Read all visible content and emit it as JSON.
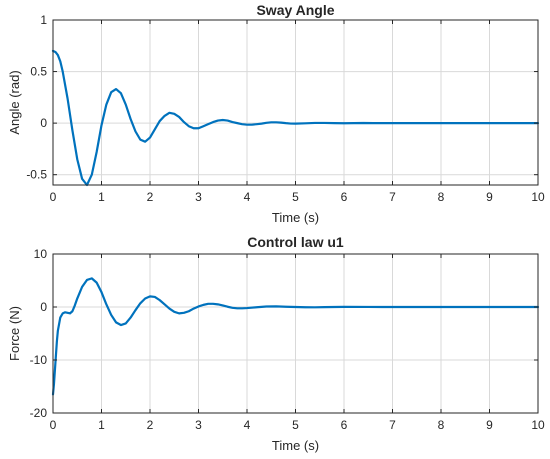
{
  "chart_data": [
    {
      "type": "line",
      "title": "Sway Angle",
      "xlabel": "Time (s)",
      "ylabel": "Angle (rad)",
      "xlim": [
        0,
        10
      ],
      "ylim": [
        -0.6,
        1
      ],
      "xticks": [
        0,
        1,
        2,
        3,
        4,
        5,
        6,
        7,
        8,
        9,
        10
      ],
      "yticks": [
        -0.5,
        0,
        0.5,
        1
      ],
      "ytick_labels": [
        "-0.5",
        "0",
        "0.5",
        "1"
      ],
      "grid": true,
      "color": "#0072BD",
      "series": [
        {
          "x": [
            0,
            0.05,
            0.1,
            0.15,
            0.2,
            0.3,
            0.4,
            0.5,
            0.6,
            0.7,
            0.8,
            0.9,
            1.0,
            1.1,
            1.2,
            1.3,
            1.4,
            1.5,
            1.6,
            1.7,
            1.8,
            1.9,
            2.0,
            2.1,
            2.2,
            2.3,
            2.4,
            2.5,
            2.6,
            2.7,
            2.8,
            2.9,
            3.0,
            3.1,
            3.2,
            3.3,
            3.4,
            3.5,
            3.6,
            3.7,
            3.8,
            3.9,
            4.0,
            4.1,
            4.2,
            4.3,
            4.4,
            4.5,
            4.6,
            4.7,
            4.8,
            4.9,
            5.0,
            5.2,
            5.4,
            5.6,
            5.8,
            6.0,
            6.2,
            6.4,
            6.6,
            6.8,
            7.0,
            7.5,
            8.0,
            8.5,
            9.0,
            9.5,
            10.0
          ],
          "y": [
            0.7,
            0.69,
            0.66,
            0.6,
            0.5,
            0.24,
            -0.07,
            -0.35,
            -0.54,
            -0.6,
            -0.5,
            -0.28,
            -0.02,
            0.18,
            0.3,
            0.33,
            0.29,
            0.18,
            0.04,
            -0.08,
            -0.16,
            -0.18,
            -0.14,
            -0.06,
            0.02,
            0.07,
            0.1,
            0.09,
            0.06,
            0.01,
            -0.03,
            -0.05,
            -0.05,
            -0.03,
            -0.01,
            0.01,
            0.025,
            0.03,
            0.025,
            0.01,
            0.0,
            -0.01,
            -0.015,
            -0.015,
            -0.01,
            -0.005,
            0.003,
            0.008,
            0.008,
            0.005,
            0.0,
            -0.004,
            -0.005,
            -0.002,
            0.002,
            0.002,
            0.0,
            -0.001,
            0.0,
            0.001,
            0.0,
            0.0,
            0.0,
            0.0,
            0.0,
            0.0,
            0.0,
            0.0,
            0.0
          ]
        }
      ]
    },
    {
      "type": "line",
      "title": "Control law u1",
      "xlabel": "Time (s)",
      "ylabel": "Force (N)",
      "xlim": [
        0,
        10
      ],
      "ylim": [
        -20,
        10
      ],
      "xticks": [
        0,
        1,
        2,
        3,
        4,
        5,
        6,
        7,
        8,
        9,
        10
      ],
      "yticks": [
        -20,
        -10,
        0,
        10
      ],
      "ytick_labels": [
        "-20",
        "-10",
        "0",
        "10"
      ],
      "grid": true,
      "color": "#0072BD",
      "series": [
        {
          "x": [
            0,
            0.02,
            0.05,
            0.08,
            0.1,
            0.15,
            0.2,
            0.25,
            0.3,
            0.35,
            0.4,
            0.45,
            0.5,
            0.6,
            0.7,
            0.8,
            0.9,
            1.0,
            1.1,
            1.2,
            1.3,
            1.4,
            1.5,
            1.6,
            1.7,
            1.8,
            1.9,
            2.0,
            2.1,
            2.2,
            2.3,
            2.4,
            2.5,
            2.6,
            2.7,
            2.8,
            2.9,
            3.0,
            3.1,
            3.2,
            3.3,
            3.4,
            3.5,
            3.6,
            3.7,
            3.8,
            3.9,
            4.0,
            4.2,
            4.4,
            4.6,
            4.8,
            5.0,
            5.2,
            5.4,
            5.6,
            5.8,
            6.0,
            6.5,
            7.0,
            7.5,
            8.0,
            9.0,
            10.0
          ],
          "y": [
            -16.5,
            -14.5,
            -10.5,
            -6.5,
            -4.5,
            -2.0,
            -1.2,
            -1.0,
            -1.1,
            -1.2,
            -0.8,
            0.3,
            1.6,
            3.8,
            5.1,
            5.4,
            4.6,
            2.8,
            0.5,
            -1.5,
            -2.9,
            -3.4,
            -3.1,
            -2.0,
            -0.6,
            0.7,
            1.6,
            2.0,
            1.9,
            1.3,
            0.5,
            -0.3,
            -0.9,
            -1.2,
            -1.1,
            -0.8,
            -0.3,
            0.1,
            0.4,
            0.6,
            0.6,
            0.5,
            0.3,
            0.05,
            -0.15,
            -0.25,
            -0.25,
            -0.2,
            -0.05,
            0.1,
            0.12,
            0.05,
            0.0,
            -0.05,
            -0.06,
            -0.03,
            0.0,
            0.02,
            0.01,
            0.0,
            0.0,
            0.0,
            0.0,
            0.0
          ]
        }
      ]
    }
  ]
}
